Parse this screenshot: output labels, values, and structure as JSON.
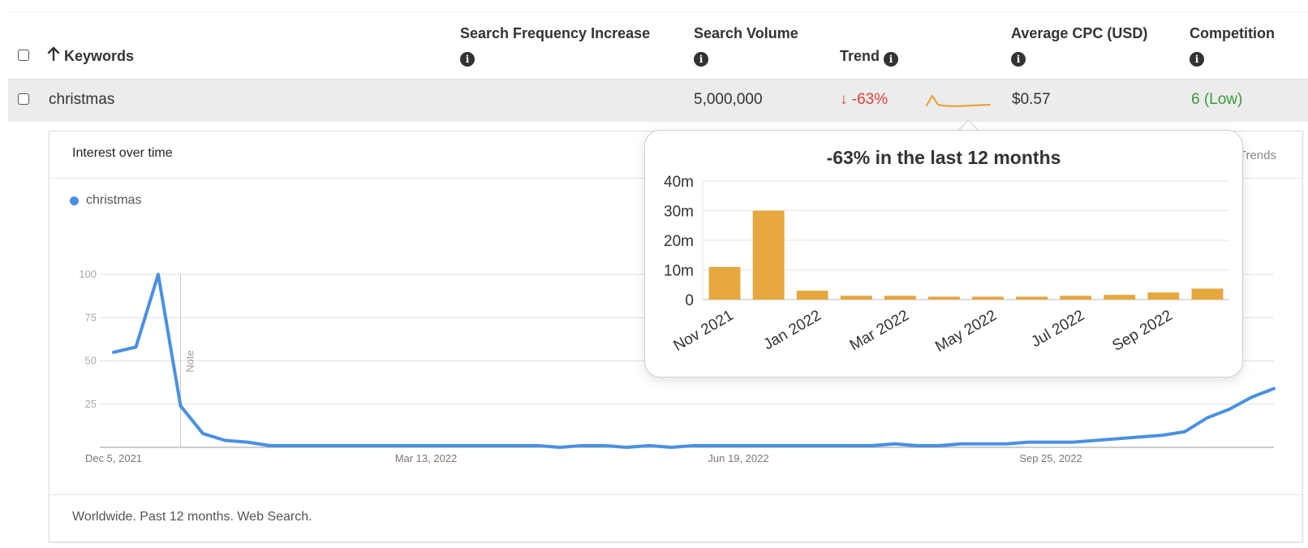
{
  "table": {
    "columns": {
      "keywords": "Keywords",
      "search_frequency": "Search Frequency Increase",
      "search_volume": "Search Volume",
      "trend": "Trend",
      "avg_cpc": "Average CPC (USD)",
      "competition": "Competition"
    },
    "sort_icon": "arrow-up-icon",
    "info_icon": "info-icon",
    "info_glyph": "i",
    "rows": [
      {
        "keyword": "christmas",
        "search_volume": "5,000,000",
        "trend_arrow": "↓",
        "trend_change": "-63%",
        "avg_cpc": "$0.57",
        "competition": "6 (Low)"
      }
    ]
  },
  "colors": {
    "trend_down": "#e0403a",
    "competition_low": "#3a9a3a",
    "bar": "#e5a73e",
    "line": "#4a90e2",
    "row_bg": "#ececec"
  },
  "interest_card": {
    "title": "Interest over time",
    "link": "Google Trends",
    "legend": "christmas",
    "note_label": "Note",
    "footer": "Worldwide. Past 12 months. Web Search."
  },
  "popup": {
    "title": "-63% in the last 12 months"
  },
  "chart_data": [
    {
      "type": "line",
      "title": "",
      "series": [
        {
          "name": "christmas",
          "values": [
            55,
            58,
            100,
            24,
            8,
            4,
            3,
            1,
            1,
            1,
            1,
            1,
            1,
            1,
            1,
            1,
            1,
            1,
            1,
            1,
            0,
            1,
            1,
            0,
            1,
            0,
            1,
            1,
            1,
            1,
            1,
            1,
            1,
            1,
            1,
            2,
            1,
            1,
            2,
            2,
            2,
            3,
            3,
            3,
            4,
            5,
            6,
            7,
            9,
            17,
            22,
            29,
            34
          ]
        }
      ],
      "x_tick_labels": [
        "Dec 5, 2021",
        "Mar 13, 2022",
        "Jun 19, 2022",
        "Sep 25, 2022"
      ],
      "y_ticks": [
        25,
        50,
        75,
        100
      ],
      "ylim": [
        0,
        100
      ],
      "grid": true,
      "note_index": 3
    },
    {
      "type": "bar",
      "title": "-63% in the last 12 months",
      "categories": [
        "Nov 2021",
        "Dec 2021",
        "Jan 2022",
        "Feb 2022",
        "Mar 2022",
        "Apr 2022",
        "May 2022",
        "Jun 2022",
        "Jul 2022",
        "Aug 2022",
        "Sep 2022",
        "Oct 2022"
      ],
      "tick_labels": [
        "Nov 2021",
        "Jan 2022",
        "Mar 2022",
        "May 2022",
        "Jul 2022",
        "Sep 2022"
      ],
      "values": [
        11000000,
        30000000,
        3000000,
        1300000,
        1300000,
        1000000,
        1000000,
        1000000,
        1300000,
        1600000,
        2400000,
        3700000
      ],
      "y_tick_labels": [
        "0",
        "10m",
        "20m",
        "30m",
        "40m"
      ],
      "ylim": [
        0,
        40000000
      ],
      "grid": true
    }
  ]
}
